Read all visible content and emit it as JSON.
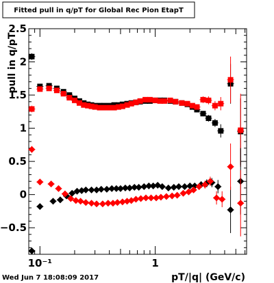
{
  "title": "Fitted pull in q/pT for Global Rec Pion EtapT",
  "timestamp": "Wed Jun  7 18:08:09 2017",
  "chart_data": {
    "type": "scatter",
    "xlabel": "pT/|q| (GeV/c)",
    "ylabel": "pull in q/pT",
    "x_scale": "log",
    "xlim": [
      0.08,
      6.2
    ],
    "ylim": [
      -0.9,
      2.5
    ],
    "x_tick_labels": [
      {
        "value": 0.1,
        "label": "10⁻¹"
      },
      {
        "value": 1,
        "label": "1"
      }
    ],
    "y_ticks": [
      -0.5,
      0,
      0.5,
      1,
      1.5,
      2,
      2.5
    ],
    "y_tick_labels": [
      "−0.5",
      "0",
      "0.5",
      "1",
      "1.5",
      "2",
      "2.5"
    ],
    "colors": {
      "black": "#000000",
      "red": "#ff0000"
    },
    "series": [
      {
        "color": "black",
        "marker": "square",
        "kind": "mean",
        "points": [
          {
            "x": 0.085,
            "y": 2.08,
            "e": 0.05
          },
          {
            "x": 0.1,
            "y": 1.63,
            "e": 0.02
          },
          {
            "x": 0.12,
            "y": 1.64,
            "e": 0.02
          },
          {
            "x": 0.14,
            "y": 1.6,
            "e": 0.02
          },
          {
            "x": 0.16,
            "y": 1.55,
            "e": 0.02
          },
          {
            "x": 0.18,
            "y": 1.5,
            "e": 0.02
          },
          {
            "x": 0.2,
            "y": 1.45,
            "e": 0.02
          },
          {
            "x": 0.22,
            "y": 1.41,
            "e": 0.02
          },
          {
            "x": 0.24,
            "y": 1.38,
            "e": 0.02
          },
          {
            "x": 0.26,
            "y": 1.36,
            "e": 0.02
          },
          {
            "x": 0.28,
            "y": 1.35,
            "e": 0.02
          },
          {
            "x": 0.3,
            "y": 1.34,
            "e": 0.02
          },
          {
            "x": 0.33,
            "y": 1.34,
            "e": 0.02
          },
          {
            "x": 0.36,
            "y": 1.34,
            "e": 0.02
          },
          {
            "x": 0.4,
            "y": 1.34,
            "e": 0.02
          },
          {
            "x": 0.44,
            "y": 1.35,
            "e": 0.02
          },
          {
            "x": 0.48,
            "y": 1.35,
            "e": 0.02
          },
          {
            "x": 0.52,
            "y": 1.36,
            "e": 0.02
          },
          {
            "x": 0.57,
            "y": 1.37,
            "e": 0.02
          },
          {
            "x": 0.62,
            "y": 1.38,
            "e": 0.02
          },
          {
            "x": 0.68,
            "y": 1.39,
            "e": 0.02
          },
          {
            "x": 0.74,
            "y": 1.4,
            "e": 0.02
          },
          {
            "x": 0.82,
            "y": 1.41,
            "e": 0.02
          },
          {
            "x": 0.9,
            "y": 1.41,
            "e": 0.02
          },
          {
            "x": 1.0,
            "y": 1.42,
            "e": 0.02
          },
          {
            "x": 1.1,
            "y": 1.42,
            "e": 0.02
          },
          {
            "x": 1.2,
            "y": 1.42,
            "e": 0.02
          },
          {
            "x": 1.35,
            "y": 1.41,
            "e": 0.02
          },
          {
            "x": 1.5,
            "y": 1.4,
            "e": 0.03
          },
          {
            "x": 1.7,
            "y": 1.38,
            "e": 0.03
          },
          {
            "x": 1.9,
            "y": 1.36,
            "e": 0.03
          },
          {
            "x": 2.1,
            "y": 1.32,
            "e": 0.03
          },
          {
            "x": 2.3,
            "y": 1.28,
            "e": 0.04
          },
          {
            "x": 2.6,
            "y": 1.22,
            "e": 0.04
          },
          {
            "x": 2.9,
            "y": 1.15,
            "e": 0.05
          },
          {
            "x": 3.3,
            "y": 1.08,
            "e": 0.06
          },
          {
            "x": 3.7,
            "y": 0.96,
            "e": 0.1
          },
          {
            "x": 4.5,
            "y": 1.67,
            "e": 0.3
          },
          {
            "x": 5.5,
            "y": 0.95,
            "e": 0.5
          }
        ]
      },
      {
        "color": "red",
        "marker": "square",
        "kind": "mean",
        "points": [
          {
            "x": 0.085,
            "y": 1.29,
            "e": 0.05
          },
          {
            "x": 0.1,
            "y": 1.59,
            "e": 0.02
          },
          {
            "x": 0.12,
            "y": 1.6,
            "e": 0.02
          },
          {
            "x": 0.14,
            "y": 1.57,
            "e": 0.02
          },
          {
            "x": 0.16,
            "y": 1.52,
            "e": 0.02
          },
          {
            "x": 0.18,
            "y": 1.46,
            "e": 0.02
          },
          {
            "x": 0.2,
            "y": 1.42,
            "e": 0.02
          },
          {
            "x": 0.22,
            "y": 1.38,
            "e": 0.02
          },
          {
            "x": 0.24,
            "y": 1.35,
            "e": 0.02
          },
          {
            "x": 0.26,
            "y": 1.34,
            "e": 0.02
          },
          {
            "x": 0.28,
            "y": 1.33,
            "e": 0.02
          },
          {
            "x": 0.3,
            "y": 1.32,
            "e": 0.02
          },
          {
            "x": 0.33,
            "y": 1.31,
            "e": 0.02
          },
          {
            "x": 0.36,
            "y": 1.31,
            "e": 0.02
          },
          {
            "x": 0.4,
            "y": 1.31,
            "e": 0.02
          },
          {
            "x": 0.44,
            "y": 1.31,
            "e": 0.02
          },
          {
            "x": 0.48,
            "y": 1.32,
            "e": 0.02
          },
          {
            "x": 0.52,
            "y": 1.33,
            "e": 0.02
          },
          {
            "x": 0.57,
            "y": 1.35,
            "e": 0.02
          },
          {
            "x": 0.62,
            "y": 1.37,
            "e": 0.02
          },
          {
            "x": 0.68,
            "y": 1.39,
            "e": 0.02
          },
          {
            "x": 0.74,
            "y": 1.41,
            "e": 0.02
          },
          {
            "x": 0.82,
            "y": 1.43,
            "e": 0.02
          },
          {
            "x": 0.9,
            "y": 1.43,
            "e": 0.02
          },
          {
            "x": 1.0,
            "y": 1.42,
            "e": 0.02
          },
          {
            "x": 1.1,
            "y": 1.41,
            "e": 0.02
          },
          {
            "x": 1.2,
            "y": 1.41,
            "e": 0.02
          },
          {
            "x": 1.35,
            "y": 1.42,
            "e": 0.02
          },
          {
            "x": 1.5,
            "y": 1.4,
            "e": 0.03
          },
          {
            "x": 1.7,
            "y": 1.38,
            "e": 0.03
          },
          {
            "x": 1.9,
            "y": 1.37,
            "e": 0.03
          },
          {
            "x": 2.1,
            "y": 1.34,
            "e": 0.03
          },
          {
            "x": 2.3,
            "y": 1.32,
            "e": 0.04
          },
          {
            "x": 2.6,
            "y": 1.43,
            "e": 0.05
          },
          {
            "x": 2.9,
            "y": 1.42,
            "e": 0.06
          },
          {
            "x": 3.3,
            "y": 1.34,
            "e": 0.07
          },
          {
            "x": 3.7,
            "y": 1.37,
            "e": 0.1
          },
          {
            "x": 4.5,
            "y": 1.73,
            "e": 0.35
          },
          {
            "x": 5.5,
            "y": 0.97,
            "e": 0.55
          }
        ]
      },
      {
        "color": "black",
        "marker": "diamond",
        "kind": "offset",
        "points": [
          {
            "x": 0.085,
            "y": -0.85,
            "e": 0.05
          },
          {
            "x": 0.1,
            "y": -0.18,
            "e": 0.02
          },
          {
            "x": 0.13,
            "y": -0.1,
            "e": 0.02
          },
          {
            "x": 0.15,
            "y": -0.08,
            "e": 0.02
          },
          {
            "x": 0.17,
            "y": -0.02,
            "e": 0.02
          },
          {
            "x": 0.19,
            "y": 0.02,
            "e": 0.02
          },
          {
            "x": 0.21,
            "y": 0.05,
            "e": 0.02
          },
          {
            "x": 0.23,
            "y": 0.06,
            "e": 0.02
          },
          {
            "x": 0.25,
            "y": 0.07,
            "e": 0.02
          },
          {
            "x": 0.28,
            "y": 0.07,
            "e": 0.02
          },
          {
            "x": 0.31,
            "y": 0.07,
            "e": 0.02
          },
          {
            "x": 0.34,
            "y": 0.08,
            "e": 0.02
          },
          {
            "x": 0.38,
            "y": 0.08,
            "e": 0.02
          },
          {
            "x": 0.42,
            "y": 0.09,
            "e": 0.02
          },
          {
            "x": 0.46,
            "y": 0.09,
            "e": 0.02
          },
          {
            "x": 0.5,
            "y": 0.09,
            "e": 0.02
          },
          {
            "x": 0.55,
            "y": 0.1,
            "e": 0.02
          },
          {
            "x": 0.6,
            "y": 0.1,
            "e": 0.02
          },
          {
            "x": 0.66,
            "y": 0.11,
            "e": 0.02
          },
          {
            "x": 0.72,
            "y": 0.11,
            "e": 0.02
          },
          {
            "x": 0.8,
            "y": 0.12,
            "e": 0.02
          },
          {
            "x": 0.88,
            "y": 0.13,
            "e": 0.02
          },
          {
            "x": 0.96,
            "y": 0.13,
            "e": 0.02
          },
          {
            "x": 1.05,
            "y": 0.14,
            "e": 0.02
          },
          {
            "x": 1.15,
            "y": 0.12,
            "e": 0.02
          },
          {
            "x": 1.3,
            "y": 0.1,
            "e": 0.02
          },
          {
            "x": 1.45,
            "y": 0.11,
            "e": 0.03
          },
          {
            "x": 1.6,
            "y": 0.12,
            "e": 0.03
          },
          {
            "x": 1.8,
            "y": 0.12,
            "e": 0.03
          },
          {
            "x": 2.0,
            "y": 0.13,
            "e": 0.03
          },
          {
            "x": 2.2,
            "y": 0.13,
            "e": 0.04
          },
          {
            "x": 2.5,
            "y": 0.15,
            "e": 0.05
          },
          {
            "x": 2.8,
            "y": 0.17,
            "e": 0.06
          },
          {
            "x": 3.1,
            "y": 0.18,
            "e": 0.07
          },
          {
            "x": 3.5,
            "y": 0.12,
            "e": 0.1
          },
          {
            "x": 4.5,
            "y": -0.23,
            "e": 0.35
          },
          {
            "x": 5.5,
            "y": 0.2,
            "e": 0.5
          }
        ]
      },
      {
        "color": "red",
        "marker": "diamond",
        "kind": "offset",
        "points": [
          {
            "x": 0.085,
            "y": 0.68,
            "e": 0.05
          },
          {
            "x": 0.1,
            "y": 0.19,
            "e": 0.02
          },
          {
            "x": 0.125,
            "y": 0.16,
            "e": 0.02
          },
          {
            "x": 0.145,
            "y": 0.09,
            "e": 0.02
          },
          {
            "x": 0.165,
            "y": 0.01,
            "e": 0.02
          },
          {
            "x": 0.185,
            "y": -0.06,
            "e": 0.02
          },
          {
            "x": 0.205,
            "y": -0.09,
            "e": 0.02
          },
          {
            "x": 0.225,
            "y": -0.1,
            "e": 0.02
          },
          {
            "x": 0.25,
            "y": -0.12,
            "e": 0.02
          },
          {
            "x": 0.28,
            "y": -0.13,
            "e": 0.02
          },
          {
            "x": 0.31,
            "y": -0.14,
            "e": 0.02
          },
          {
            "x": 0.35,
            "y": -0.14,
            "e": 0.02
          },
          {
            "x": 0.39,
            "y": -0.13,
            "e": 0.02
          },
          {
            "x": 0.43,
            "y": -0.13,
            "e": 0.02
          },
          {
            "x": 0.47,
            "y": -0.12,
            "e": 0.02
          },
          {
            "x": 0.52,
            "y": -0.11,
            "e": 0.02
          },
          {
            "x": 0.57,
            "y": -0.1,
            "e": 0.02
          },
          {
            "x": 0.62,
            "y": -0.09,
            "e": 0.02
          },
          {
            "x": 0.68,
            "y": -0.07,
            "e": 0.02
          },
          {
            "x": 0.75,
            "y": -0.06,
            "e": 0.02
          },
          {
            "x": 0.83,
            "y": -0.05,
            "e": 0.02
          },
          {
            "x": 0.92,
            "y": -0.05,
            "e": 0.02
          },
          {
            "x": 1.02,
            "y": -0.05,
            "e": 0.02
          },
          {
            "x": 1.12,
            "y": -0.04,
            "e": 0.02
          },
          {
            "x": 1.25,
            "y": -0.03,
            "e": 0.02
          },
          {
            "x": 1.4,
            "y": -0.02,
            "e": 0.03
          },
          {
            "x": 1.55,
            "y": -0.01,
            "e": 0.03
          },
          {
            "x": 1.75,
            "y": 0.02,
            "e": 0.03
          },
          {
            "x": 1.95,
            "y": 0.04,
            "e": 0.04
          },
          {
            "x": 2.15,
            "y": 0.07,
            "e": 0.04
          },
          {
            "x": 2.4,
            "y": 0.12,
            "e": 0.05
          },
          {
            "x": 2.7,
            "y": 0.15,
            "e": 0.06
          },
          {
            "x": 3.0,
            "y": 0.2,
            "e": 0.07
          },
          {
            "x": 3.4,
            "y": -0.05,
            "e": 0.1
          },
          {
            "x": 3.8,
            "y": -0.07,
            "e": 0.12
          },
          {
            "x": 4.5,
            "y": 0.42,
            "e": 0.35
          },
          {
            "x": 5.5,
            "y": -0.13,
            "e": 0.5
          }
        ]
      }
    ]
  }
}
